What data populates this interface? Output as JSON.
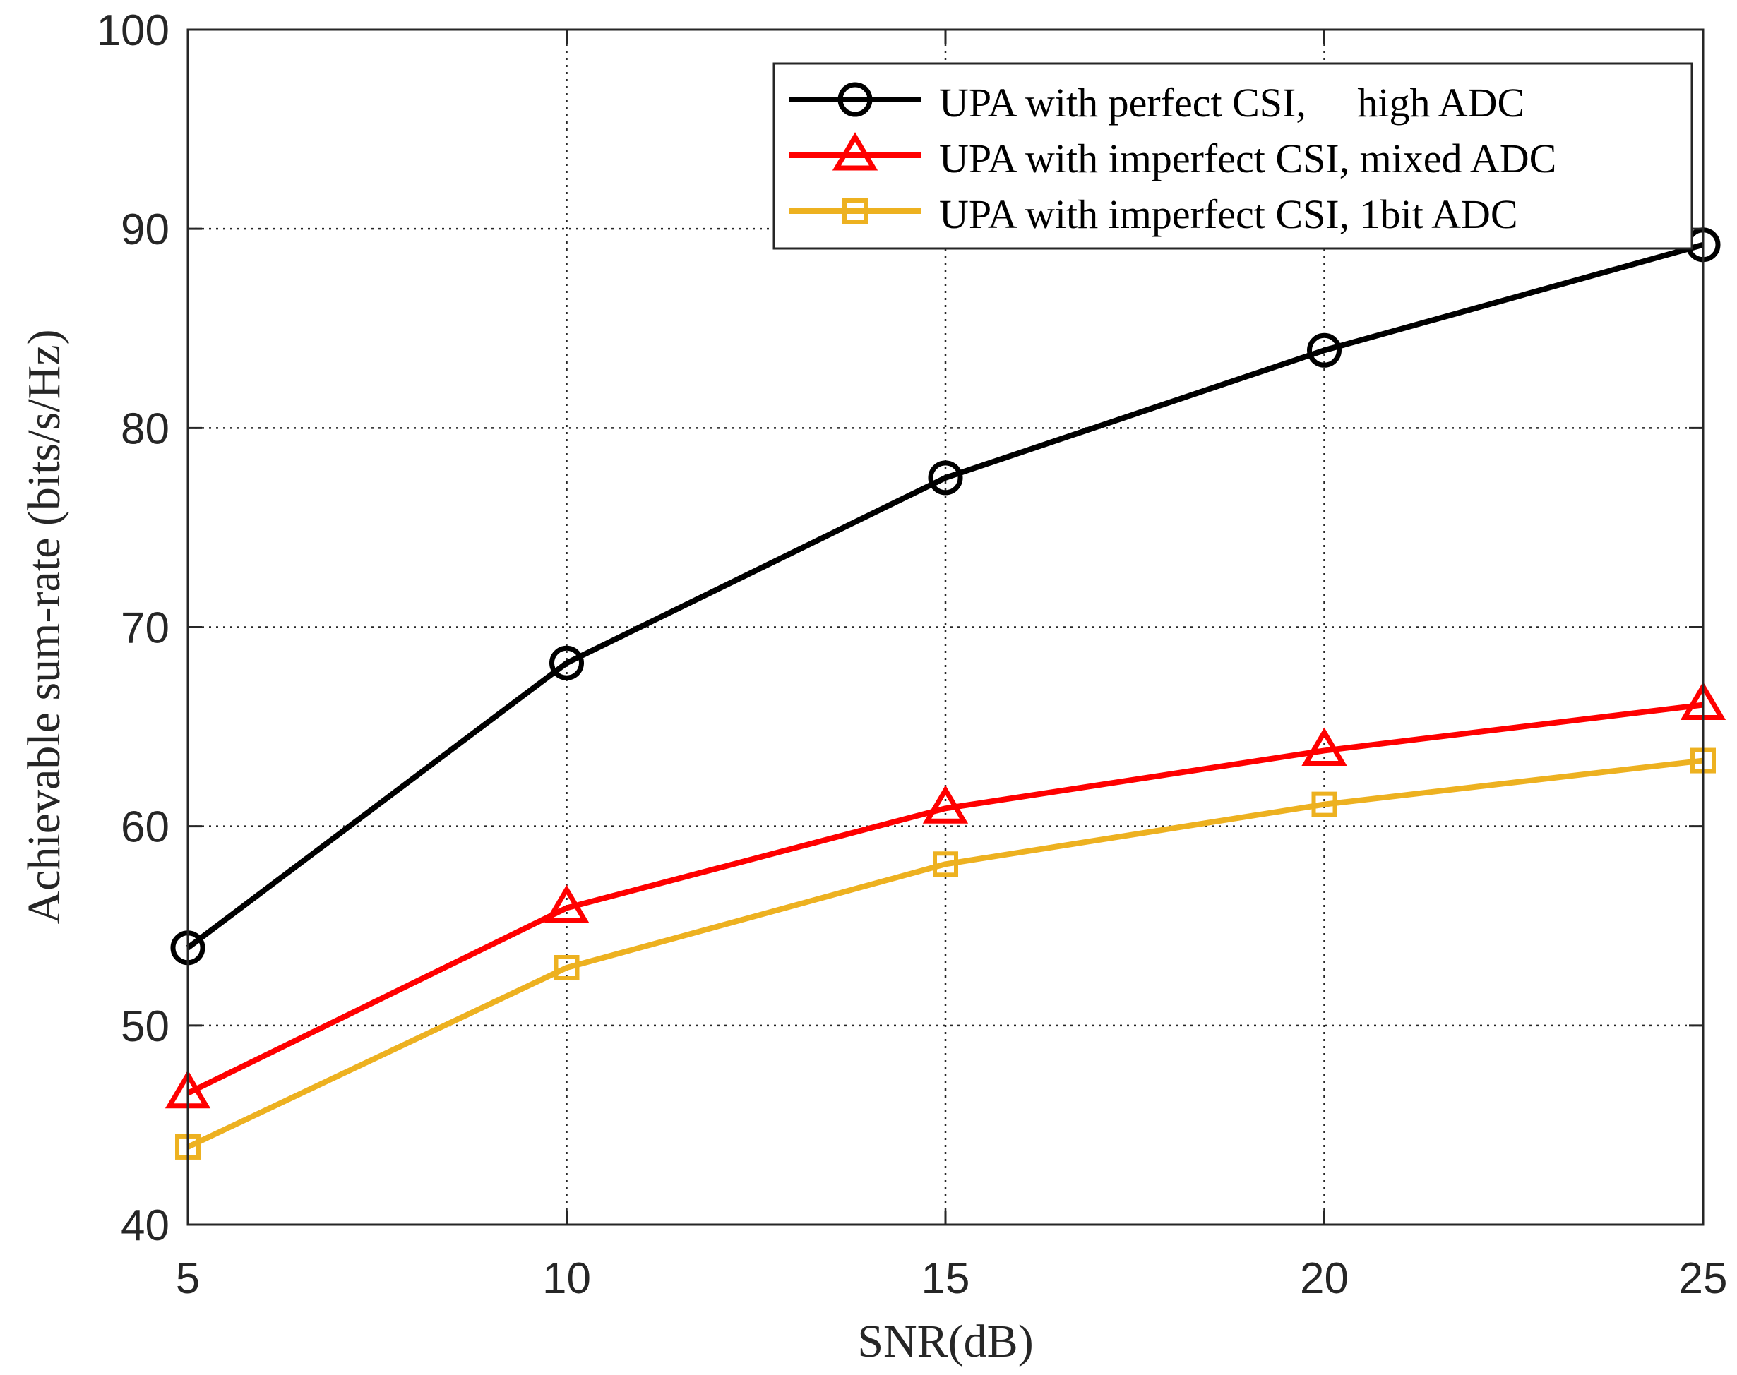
{
  "chart_data": {
    "type": "line",
    "title": "",
    "xlabel": "SNR(dB)",
    "ylabel": "Achievable sum-rate (bits/s/Hz)",
    "x": [
      5,
      10,
      15,
      20,
      25
    ],
    "xlim": [
      5,
      25
    ],
    "ylim": [
      40,
      100
    ],
    "xticks": [
      "5",
      "10",
      "15",
      "20",
      "25"
    ],
    "yticks": [
      "40",
      "50",
      "60",
      "70",
      "80",
      "90",
      "100"
    ],
    "grid": true,
    "legend_position": "top-right",
    "series": [
      {
        "name": "UPA with perfect CSI,     high ADC",
        "color": "#000000",
        "marker": "circle",
        "values": [
          53.9,
          68.2,
          77.5,
          83.9,
          89.2
        ]
      },
      {
        "name": "UPA with imperfect CSI, mixed ADC",
        "color": "#ff0000",
        "marker": "triangle",
        "values": [
          46.6,
          55.9,
          60.9,
          63.8,
          66.1
        ]
      },
      {
        "name": "UPA with imperfect CSI, 1bit ADC",
        "color": "#edb120",
        "marker": "square",
        "values": [
          43.9,
          52.9,
          58.1,
          61.1,
          63.3
        ]
      }
    ]
  }
}
